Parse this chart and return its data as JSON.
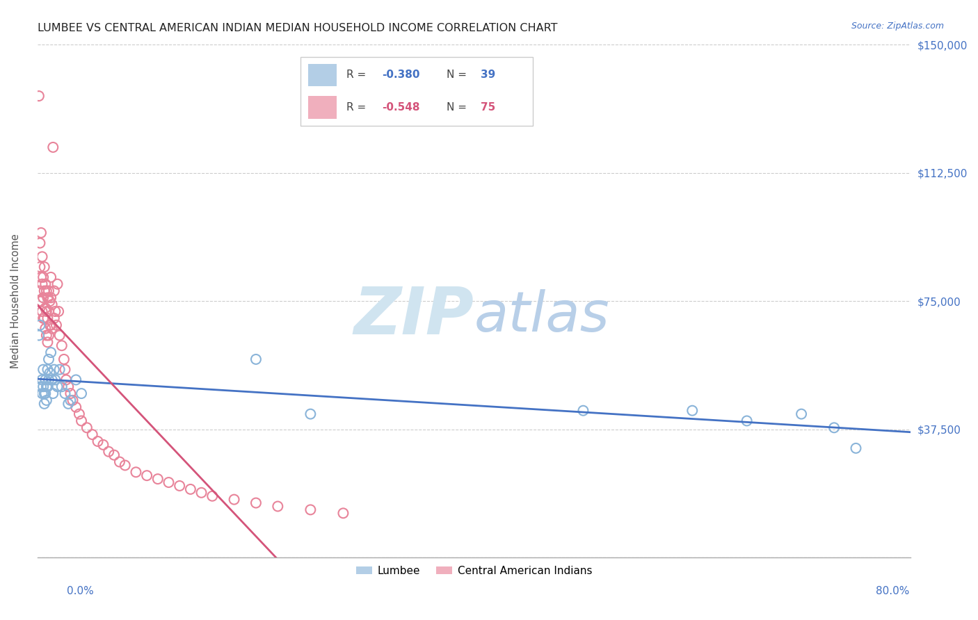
{
  "title": "LUMBEE VS CENTRAL AMERICAN INDIAN MEDIAN HOUSEHOLD INCOME CORRELATION CHART",
  "source": "Source: ZipAtlas.com",
  "ylabel": "Median Household Income",
  "yticks": [
    0,
    37500,
    75000,
    112500,
    150000
  ],
  "xlim": [
    0.0,
    0.8
  ],
  "ylim": [
    0,
    150000
  ],
  "lumbee_R": -0.38,
  "lumbee_N": 39,
  "central_R": -0.548,
  "central_N": 75,
  "lumbee_color": "#8ab4d9",
  "central_color": "#e8849a",
  "lumbee_line_color": "#4472c4",
  "central_line_color": "#d4547a",
  "watermark_color": "#d0e4f0",
  "lumbee_x": [
    0.001,
    0.002,
    0.003,
    0.004,
    0.004,
    0.005,
    0.005,
    0.006,
    0.006,
    0.007,
    0.007,
    0.008,
    0.008,
    0.009,
    0.009,
    0.01,
    0.01,
    0.011,
    0.012,
    0.013,
    0.014,
    0.015,
    0.016,
    0.018,
    0.02,
    0.022,
    0.025,
    0.028,
    0.03,
    0.035,
    0.04,
    0.2,
    0.25,
    0.5,
    0.6,
    0.65,
    0.7,
    0.73,
    0.75
  ],
  "lumbee_y": [
    65000,
    68000,
    50000,
    52000,
    48000,
    55000,
    50000,
    48000,
    45000,
    52000,
    48000,
    50000,
    46000,
    55000,
    50000,
    58000,
    52000,
    54000,
    60000,
    52000,
    48000,
    55000,
    52000,
    50000,
    55000,
    50000,
    48000,
    45000,
    46000,
    52000,
    48000,
    58000,
    42000,
    43000,
    43000,
    40000,
    42000,
    38000,
    32000
  ],
  "central_x": [
    0.001,
    0.001,
    0.002,
    0.002,
    0.002,
    0.003,
    0.003,
    0.003,
    0.004,
    0.004,
    0.004,
    0.005,
    0.005,
    0.005,
    0.006,
    0.006,
    0.006,
    0.007,
    0.007,
    0.007,
    0.008,
    0.008,
    0.008,
    0.009,
    0.009,
    0.009,
    0.01,
    0.01,
    0.01,
    0.011,
    0.011,
    0.012,
    0.012,
    0.012,
    0.013,
    0.013,
    0.014,
    0.015,
    0.015,
    0.016,
    0.017,
    0.018,
    0.019,
    0.02,
    0.022,
    0.024,
    0.025,
    0.026,
    0.028,
    0.03,
    0.032,
    0.035,
    0.038,
    0.04,
    0.045,
    0.05,
    0.055,
    0.06,
    0.065,
    0.07,
    0.075,
    0.08,
    0.09,
    0.1,
    0.11,
    0.12,
    0.13,
    0.14,
    0.15,
    0.16,
    0.18,
    0.2,
    0.22,
    0.25,
    0.28
  ],
  "central_y": [
    135000,
    78000,
    92000,
    85000,
    75000,
    95000,
    82000,
    75000,
    88000,
    80000,
    72000,
    82000,
    76000,
    70000,
    85000,
    78000,
    70000,
    80000,
    73000,
    67000,
    78000,
    72000,
    65000,
    76000,
    70000,
    63000,
    78000,
    72000,
    65000,
    75000,
    68000,
    82000,
    76000,
    68000,
    74000,
    67000,
    120000,
    78000,
    70000,
    72000,
    68000,
    80000,
    72000,
    65000,
    62000,
    58000,
    55000,
    52000,
    50000,
    48000,
    46000,
    44000,
    42000,
    40000,
    38000,
    36000,
    34000,
    33000,
    31000,
    30000,
    28000,
    27000,
    25000,
    24000,
    23000,
    22000,
    21000,
    20000,
    19000,
    18000,
    17000,
    16000,
    15000,
    14000,
    13000
  ]
}
